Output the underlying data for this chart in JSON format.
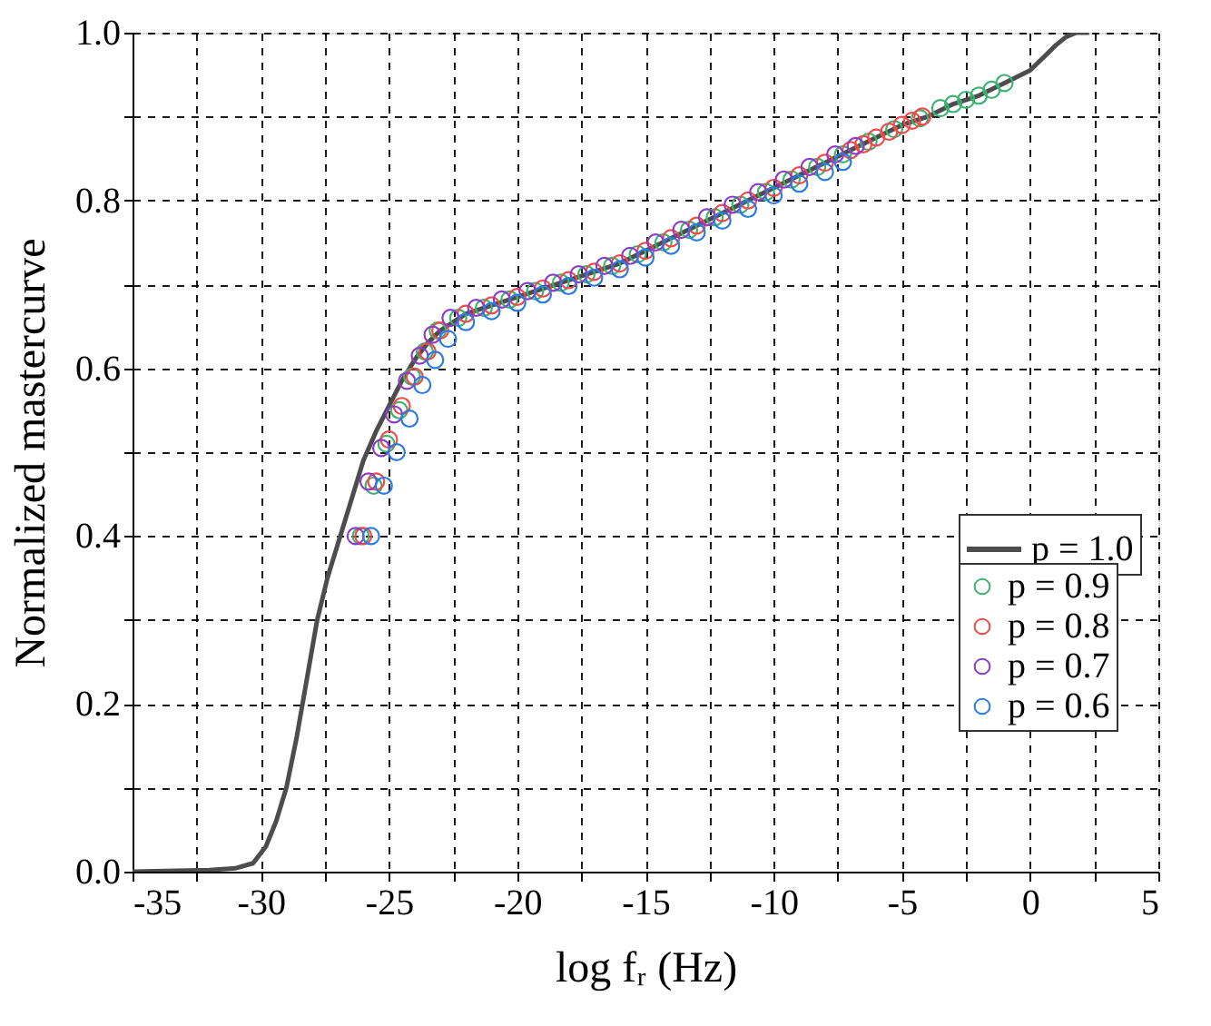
{
  "chart_data": {
    "type": "scatter",
    "xlabel": "log fᵣ (Hz)",
    "ylabel": "Normalized mastercurve",
    "xlim": [
      -35,
      5
    ],
    "ylim": [
      0,
      1
    ],
    "xticks": [
      -35,
      {
        "value": -32.5,
        "label": null
      },
      -30,
      {
        "value": -27.5,
        "label": null
      },
      -25,
      {
        "value": -22.5,
        "label": null
      },
      -20,
      {
        "value": -17.5,
        "label": null
      },
      -15,
      {
        "value": -12.5,
        "label": null
      },
      -10,
      {
        "value": -7.5,
        "label": null
      },
      -5,
      {
        "value": -2.5,
        "label": null
      },
      0,
      {
        "value": 2.5,
        "label": null
      },
      5
    ],
    "yticks": [
      {
        "value": 0,
        "label": "0.0"
      },
      {
        "value": 0.1,
        "label": null
      },
      {
        "value": 0.2,
        "label": "0.2"
      },
      {
        "value": 0.3,
        "label": null
      },
      {
        "value": 0.4,
        "label": "0.4"
      },
      {
        "value": 0.5,
        "label": null
      },
      {
        "value": 0.6,
        "label": "0.6"
      },
      {
        "value": 0.7,
        "label": null
      },
      {
        "value": 0.8,
        "label": "0.8"
      },
      {
        "value": 0.9,
        "label": null
      },
      {
        "value": 1.0,
        "label": "1.0"
      }
    ],
    "grid": true,
    "legend": "right",
    "marker": "circle",
    "series": [
      {
        "name": "p = 1.0",
        "type": "line",
        "color": "#4d4d4d",
        "marker": "none",
        "line_style": "solid",
        "x": [
          -35,
          -32,
          -31,
          -30.3,
          -29.8,
          -29.4,
          -29,
          -28.6,
          -28.2,
          -27.8,
          -27.4,
          -27,
          -26.5,
          -26,
          -25.5,
          -25,
          -24.5,
          -24,
          -23.5,
          -23,
          -22.5,
          -22,
          -21,
          -20,
          -19,
          -18,
          -17,
          -16,
          -15,
          -14,
          -13,
          -12,
          -11,
          -10,
          -9,
          -8,
          -7,
          -6,
          -5,
          -4,
          -3,
          -2,
          -1,
          0,
          0.5,
          1,
          1.4,
          1.8,
          2.3
        ],
        "values": [
          0,
          0.002,
          0.004,
          0.01,
          0.03,
          0.06,
          0.1,
          0.16,
          0.23,
          0.3,
          0.35,
          0.39,
          0.44,
          0.49,
          0.525,
          0.555,
          0.585,
          0.61,
          0.63,
          0.645,
          0.655,
          0.665,
          0.675,
          0.685,
          0.695,
          0.705,
          0.715,
          0.725,
          0.74,
          0.755,
          0.77,
          0.785,
          0.8,
          0.815,
          0.83,
          0.845,
          0.86,
          0.875,
          0.89,
          0.9,
          0.915,
          0.925,
          0.94,
          0.955,
          0.97,
          0.985,
          0.995,
          1.0,
          1.0
        ]
      },
      {
        "name": "p = 0.9",
        "color": "#3cb371",
        "x": [
          -26.1,
          -25.6,
          -25.1,
          -24.6,
          -24.1,
          -23.6,
          -23.1,
          -22.3,
          -21.3,
          -20.3,
          -19.3,
          -18.3,
          -17.3,
          -16.3,
          -15.3,
          -14.3,
          -13.3,
          -12.3,
          -11.3,
          -10.3,
          -9.3,
          -8.3,
          -7.3,
          -6.3,
          -5.3,
          -4.3,
          -3.5,
          -3,
          -2.5,
          -2,
          -1.5,
          -1
        ],
        "values": [
          0.4,
          0.46,
          0.51,
          0.55,
          0.59,
          0.62,
          0.645,
          0.66,
          0.672,
          0.682,
          0.692,
          0.702,
          0.712,
          0.722,
          0.736,
          0.75,
          0.765,
          0.78,
          0.795,
          0.81,
          0.825,
          0.84,
          0.855,
          0.87,
          0.885,
          0.898,
          0.91,
          0.915,
          0.92,
          0.925,
          0.932,
          0.94
        ]
      },
      {
        "name": "p = 0.8",
        "color": "#f04a4a",
        "x": [
          -26,
          -25.5,
          -25,
          -24.5,
          -24,
          -23.5,
          -23,
          -22,
          -21,
          -20,
          -19,
          -18,
          -17,
          -16,
          -15,
          -14,
          -13,
          -12,
          -11,
          -10,
          -9,
          -8,
          -7,
          -6.5,
          -6,
          -5.5,
          -5,
          -4.6,
          -4.2
        ],
        "values": [
          0.4,
          0.465,
          0.515,
          0.555,
          0.59,
          0.62,
          0.645,
          0.665,
          0.675,
          0.685,
          0.695,
          0.705,
          0.715,
          0.725,
          0.74,
          0.755,
          0.77,
          0.785,
          0.8,
          0.815,
          0.83,
          0.845,
          0.86,
          0.867,
          0.875,
          0.882,
          0.89,
          0.895,
          0.9
        ]
      },
      {
        "name": "p = 0.7",
        "color": "#8a3ec8",
        "x": [
          -26.3,
          -25.8,
          -25.3,
          -24.8,
          -24.3,
          -23.8,
          -23.3,
          -22.6,
          -21.6,
          -20.6,
          -19.6,
          -18.6,
          -17.6,
          -16.6,
          -15.6,
          -14.6,
          -13.6,
          -12.6,
          -11.6,
          -10.6,
          -9.6,
          -8.6,
          -7.6,
          -6.8
        ],
        "values": [
          0.4,
          0.465,
          0.505,
          0.545,
          0.585,
          0.615,
          0.64,
          0.66,
          0.672,
          0.682,
          0.692,
          0.702,
          0.712,
          0.722,
          0.734,
          0.75,
          0.765,
          0.78,
          0.795,
          0.81,
          0.825,
          0.84,
          0.855,
          0.865
        ]
      },
      {
        "name": "p = 0.6",
        "color": "#2a7be4",
        "x": [
          -25.7,
          -25.2,
          -24.7,
          -24.2,
          -23.7,
          -23.2,
          -22.7,
          -22,
          -21,
          -20,
          -19,
          -18,
          -17,
          -16,
          -15,
          -14,
          -13,
          -12,
          -11,
          -10,
          -9,
          -8,
          -7.3
        ],
        "values": [
          0.4,
          0.46,
          0.5,
          0.54,
          0.58,
          0.61,
          0.635,
          0.655,
          0.668,
          0.678,
          0.688,
          0.698,
          0.708,
          0.718,
          0.732,
          0.746,
          0.762,
          0.776,
          0.79,
          0.806,
          0.82,
          0.834,
          0.846
        ]
      }
    ]
  }
}
